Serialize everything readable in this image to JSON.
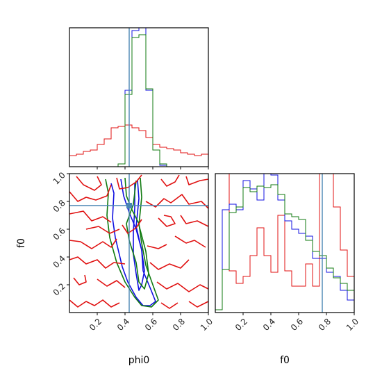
{
  "chart_data": {
    "type": "corner",
    "parameters": [
      "phi0",
      "f0"
    ],
    "truths": {
      "phi0": 0.43,
      "f0": 0.77
    },
    "colors": {
      "red": "#e01010",
      "blue": "#1010e0",
      "green": "#0f7a0f",
      "truth": "#4a86b4"
    },
    "panels": {
      "phi0_hist": {
        "xlim": [
          0,
          1
        ],
        "bins": [
          0,
          0.05,
          0.1,
          0.15,
          0.2,
          0.25,
          0.3,
          0.35,
          0.4,
          0.45,
          0.5,
          0.55,
          0.6,
          0.65,
          0.7,
          0.75,
          0.8,
          0.85,
          0.9,
          0.95,
          1.0
        ],
        "series": [
          {
            "color": "red",
            "values": [
              0.08,
              0.09,
              0.11,
              0.12,
              0.16,
              0.2,
              0.28,
              0.29,
              0.3,
              0.28,
              0.26,
              0.21,
              0.16,
              0.14,
              0.13,
              0.12,
              0.1,
              0.09,
              0.08,
              0.09
            ]
          },
          {
            "color": "blue",
            "values": [
              0,
              0,
              0,
              0,
              0,
              0,
              0,
              0.02,
              0.55,
              0.98,
              1.0,
              0.55,
              0.12,
              0.01,
              0,
              0,
              0,
              0,
              0,
              0
            ]
          },
          {
            "color": "green",
            "values": [
              0,
              0,
              0,
              0,
              0,
              0,
              0,
              0.02,
              0.52,
              0.93,
              0.95,
              0.56,
              0.12,
              0.02,
              0,
              0,
              0,
              0,
              0,
              0
            ]
          }
        ]
      },
      "f0_hist": {
        "xlim": [
          0,
          1
        ],
        "bins": [
          0,
          0.05,
          0.1,
          0.15,
          0.2,
          0.25,
          0.3,
          0.35,
          0.4,
          0.45,
          0.5,
          0.55,
          0.6,
          0.65,
          0.7,
          0.75,
          0.8,
          0.85,
          0.9,
          0.95,
          1.0
        ],
        "series": [
          {
            "color": "red",
            "values": [
              1.02,
              1.01,
              0.3,
              0.21,
              0.26,
              0.41,
              0.61,
              0.41,
              0.29,
              0.7,
              0.3,
              0.19,
              0.19,
              0.35,
              0.19,
              1.0,
              1.02,
              0.76,
              0.45,
              0.26
            ]
          },
          {
            "color": "blue",
            "values": [
              0.02,
              0.74,
              0.78,
              0.74,
              0.95,
              0.89,
              0.81,
              1.0,
              0.99,
              0.81,
              0.66,
              0.6,
              0.57,
              0.55,
              0.39,
              0.39,
              0.29,
              0.26,
              0.16,
              0.09
            ]
          },
          {
            "color": "green",
            "values": [
              0.02,
              0.31,
              0.72,
              0.76,
              0.9,
              0.87,
              0.91,
              0.9,
              0.92,
              0.85,
              0.71,
              0.69,
              0.67,
              0.52,
              0.44,
              0.41,
              0.32,
              0.25,
              0.21,
              0.16
            ]
          }
        ]
      },
      "joint": {
        "xlim": [
          0,
          1
        ],
        "ylim": [
          0,
          1
        ],
        "contours": [
          {
            "color": "blue",
            "points": [
              [
                0.3,
                0.93
              ],
              [
                0.32,
                0.86
              ],
              [
                0.31,
                0.68
              ],
              [
                0.33,
                0.54
              ],
              [
                0.38,
                0.33
              ],
              [
                0.42,
                0.22
              ],
              [
                0.48,
                0.11
              ],
              [
                0.53,
                0.05
              ],
              [
                0.58,
                0.05
              ],
              [
                0.62,
                0.08
              ],
              [
                0.58,
                0.18
              ],
              [
                0.53,
                0.3
              ],
              [
                0.52,
                0.45
              ],
              [
                0.48,
                0.6
              ],
              [
                0.43,
                0.72
              ],
              [
                0.39,
                0.84
              ],
              [
                0.37,
                0.96
              ]
            ]
          },
          {
            "color": "blue",
            "points": [
              [
                0.49,
                0.95
              ],
              [
                0.5,
                0.82
              ],
              [
                0.48,
                0.62
              ],
              [
                0.52,
                0.45
              ],
              [
                0.54,
                0.3
              ],
              [
                0.52,
                0.2
              ],
              [
                0.5,
                0.16
              ],
              [
                0.48,
                0.28
              ],
              [
                0.46,
                0.42
              ],
              [
                0.46,
                0.58
              ],
              [
                0.47,
                0.75
              ],
              [
                0.47,
                0.93
              ]
            ]
          },
          {
            "color": "green",
            "points": [
              [
                0.26,
                0.96
              ],
              [
                0.28,
                0.86
              ],
              [
                0.27,
                0.7
              ],
              [
                0.29,
                0.54
              ],
              [
                0.34,
                0.36
              ],
              [
                0.4,
                0.22
              ],
              [
                0.47,
                0.11
              ],
              [
                0.52,
                0.05
              ],
              [
                0.59,
                0.04
              ],
              [
                0.64,
                0.09
              ],
              [
                0.6,
                0.2
              ],
              [
                0.55,
                0.34
              ],
              [
                0.52,
                0.5
              ],
              [
                0.5,
                0.64
              ],
              [
                0.45,
                0.74
              ],
              [
                0.41,
                0.84
              ],
              [
                0.4,
                0.97
              ]
            ]
          },
          {
            "color": "green",
            "points": [
              [
                0.51,
                0.97
              ],
              [
                0.52,
                0.83
              ],
              [
                0.5,
                0.63
              ],
              [
                0.55,
                0.44
              ],
              [
                0.57,
                0.28
              ],
              [
                0.54,
                0.17
              ],
              [
                0.5,
                0.22
              ],
              [
                0.48,
                0.36
              ],
              [
                0.43,
                0.52
              ],
              [
                0.41,
                0.64
              ],
              [
                0.46,
                0.78
              ],
              [
                0.48,
                0.95
              ]
            ]
          },
          {
            "color": "red",
            "points": [
              [
                0.05,
                0.98
              ],
              [
                0.1,
                0.92
              ],
              [
                0.18,
                0.88
              ],
              [
                0.23,
                0.92
              ],
              [
                0.2,
                0.98
              ]
            ]
          },
          {
            "color": "red",
            "points": [
              [
                0.0,
                0.87
              ],
              [
                0.06,
                0.8
              ],
              [
                0.12,
                0.83
              ],
              [
                0.19,
                0.81
              ],
              [
                0.27,
                0.84
              ],
              [
                0.3,
                0.92
              ]
            ]
          },
          {
            "color": "red",
            "points": [
              [
                0.34,
                0.97
              ],
              [
                0.36,
                0.89
              ],
              [
                0.42,
                0.9
              ],
              [
                0.48,
                0.94
              ],
              [
                0.52,
                0.99
              ]
            ]
          },
          {
            "color": "red",
            "points": [
              [
                0.66,
                0.96
              ],
              [
                0.7,
                0.91
              ],
              [
                0.76,
                0.94
              ],
              [
                0.79,
                0.99
              ]
            ]
          },
          {
            "color": "red",
            "points": [
              [
                0.84,
                0.98
              ],
              [
                0.86,
                0.92
              ],
              [
                0.94,
                0.95
              ],
              [
                1.0,
                0.96
              ]
            ]
          },
          {
            "color": "red",
            "points": [
              [
                0.55,
                0.8
              ],
              [
                0.62,
                0.76
              ],
              [
                0.68,
                0.82
              ],
              [
                0.73,
                0.79
              ],
              [
                0.81,
                0.85
              ],
              [
                0.86,
                0.78
              ],
              [
                0.95,
                0.8
              ],
              [
                1.0,
                0.75
              ]
            ]
          },
          {
            "color": "red",
            "points": [
              [
                0.0,
                0.71
              ],
              [
                0.1,
                0.73
              ],
              [
                0.16,
                0.66
              ],
              [
                0.24,
                0.69
              ],
              [
                0.3,
                0.65
              ]
            ]
          },
          {
            "color": "red",
            "points": [
              [
                0.12,
                0.6
              ],
              [
                0.21,
                0.62
              ],
              [
                0.29,
                0.57
              ],
              [
                0.36,
                0.6
              ]
            ]
          },
          {
            "color": "red",
            "points": [
              [
                0.38,
                0.63
              ],
              [
                0.42,
                0.57
              ],
              [
                0.48,
                0.61
              ],
              [
                0.52,
                0.67
              ]
            ]
          },
          {
            "color": "red",
            "points": [
              [
                0.64,
                0.68
              ],
              [
                0.7,
                0.62
              ],
              [
                0.76,
                0.64
              ],
              [
                0.73,
                0.69
              ],
              [
                0.68,
                0.7
              ]
            ]
          },
          {
            "color": "red",
            "points": [
              [
                0.8,
                0.7
              ],
              [
                0.84,
                0.64
              ],
              [
                0.92,
                0.66
              ],
              [
                1.0,
                0.62
              ]
            ]
          },
          {
            "color": "red",
            "points": [
              [
                0.0,
                0.52
              ],
              [
                0.08,
                0.51
              ],
              [
                0.16,
                0.46
              ],
              [
                0.24,
                0.51
              ],
              [
                0.3,
                0.47
              ],
              [
                0.34,
                0.53
              ]
            ]
          },
          {
            "color": "red",
            "points": [
              [
                0.56,
                0.48
              ],
              [
                0.64,
                0.46
              ],
              [
                0.7,
                0.49
              ]
            ]
          },
          {
            "color": "red",
            "points": [
              [
                0.76,
                0.55
              ],
              [
                0.84,
                0.5
              ],
              [
                0.9,
                0.52
              ],
              [
                0.98,
                0.47
              ]
            ]
          },
          {
            "color": "red",
            "points": [
              [
                0.0,
                0.38
              ],
              [
                0.06,
                0.4
              ],
              [
                0.12,
                0.35
              ],
              [
                0.2,
                0.38
              ],
              [
                0.26,
                0.32
              ],
              [
                0.32,
                0.36
              ],
              [
                0.4,
                0.35
              ]
            ]
          },
          {
            "color": "red",
            "points": [
              [
                0.58,
                0.36
              ],
              [
                0.64,
                0.31
              ],
              [
                0.72,
                0.35
              ],
              [
                0.8,
                0.32
              ],
              [
                0.86,
                0.38
              ]
            ]
          },
          {
            "color": "red",
            "points": [
              [
                0.03,
                0.25
              ],
              [
                0.07,
                0.2
              ],
              [
                0.12,
                0.22
              ],
              [
                0.11,
                0.27
              ]
            ]
          },
          {
            "color": "red",
            "points": [
              [
                0.2,
                0.24
              ],
              [
                0.27,
                0.19
              ],
              [
                0.34,
                0.23
              ],
              [
                0.4,
                0.18
              ]
            ]
          },
          {
            "color": "red",
            "points": [
              [
                0.63,
                0.22
              ],
              [
                0.7,
                0.17
              ],
              [
                0.78,
                0.21
              ],
              [
                0.86,
                0.15
              ],
              [
                0.94,
                0.2
              ],
              [
                1.0,
                0.17
              ]
            ]
          },
          {
            "color": "red",
            "points": [
              [
                0.0,
                0.09
              ],
              [
                0.06,
                0.04
              ],
              [
                0.12,
                0.08
              ],
              [
                0.18,
                0.05
              ],
              [
                0.24,
                0.09
              ],
              [
                0.3,
                0.04
              ],
              [
                0.36,
                0.07
              ]
            ]
          },
          {
            "color": "red",
            "points": [
              [
                0.66,
                0.07
              ],
              [
                0.72,
                0.03
              ],
              [
                0.78,
                0.07
              ]
            ]
          },
          {
            "color": "red",
            "points": [
              [
                0.86,
                0.08
              ],
              [
                0.92,
                0.04
              ],
              [
                1.0,
                0.08
              ]
            ]
          }
        ]
      }
    },
    "x_ticks": [
      "0.2",
      "0.4",
      "0.6",
      "0.8",
      "1.0"
    ],
    "y_ticks": [
      "0.2",
      "0.4",
      "0.6",
      "0.8",
      "1.0"
    ],
    "xlabel_left": "phi0",
    "xlabel_right": "f0",
    "ylabel_joint": "f0"
  }
}
